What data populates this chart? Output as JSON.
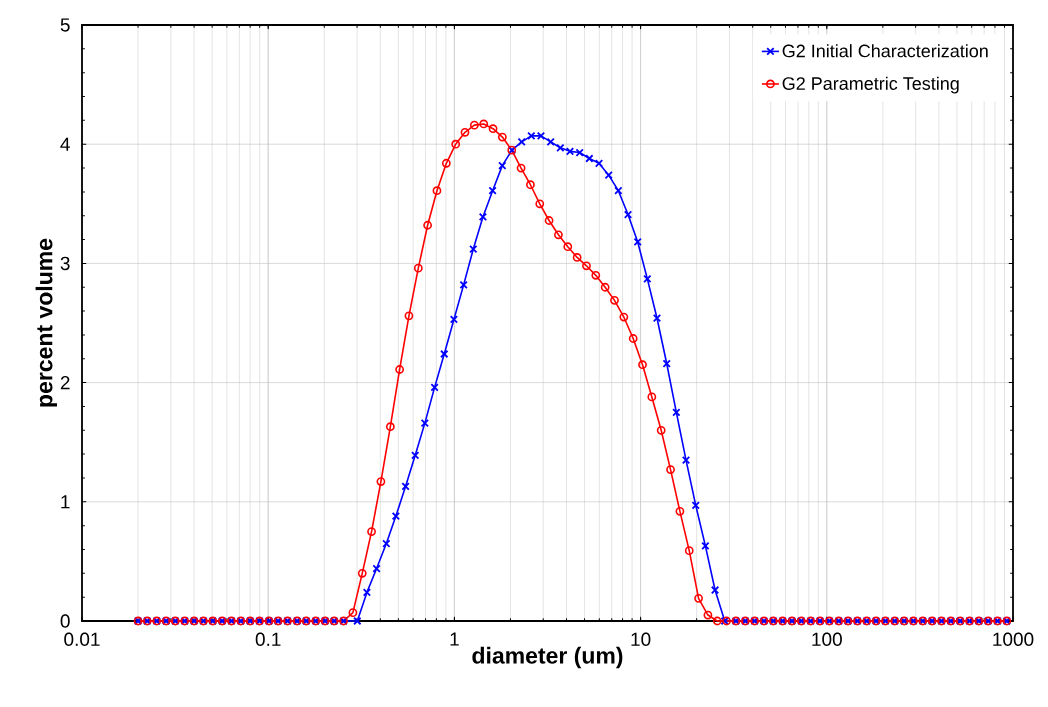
{
  "chart_data": {
    "type": "line",
    "xlabel": "diameter (um)",
    "ylabel": "percent volume",
    "log": "x",
    "xlim": [
      0.01,
      1000
    ],
    "xticks": [
      0.01,
      0.1,
      1,
      10,
      100,
      1000
    ],
    "ylim": [
      0,
      5
    ],
    "yticks": [
      0,
      1,
      2,
      3,
      4,
      5
    ],
    "grid": true,
    "legend": "top right",
    "line_style": "solid",
    "series": [
      {
        "name": "G2 Initial Characterization",
        "color": "#0000ff",
        "marker": "cross",
        "x": [
          0.02,
          0.0224,
          0.0252,
          0.0283,
          0.0317,
          0.0356,
          0.04,
          0.0449,
          0.0504,
          0.0566,
          0.0635,
          0.0713,
          0.08,
          0.0898,
          0.101,
          0.113,
          0.127,
          0.143,
          0.16,
          0.18,
          0.202,
          0.226,
          0.254,
          0.301,
          0.339,
          0.382,
          0.431,
          0.485,
          0.547,
          0.616,
          0.694,
          0.783,
          0.882,
          0.994,
          1.121,
          1.263,
          1.423,
          1.604,
          1.808,
          2.038,
          2.297,
          2.589,
          2.917,
          3.289,
          3.707,
          4.177,
          4.707,
          5.305,
          5.98,
          6.74,
          7.595,
          8.56,
          9.647,
          10.87,
          12.25,
          13.81,
          15.56,
          17.54,
          19.78,
          22.28,
          25.11,
          28.3,
          32.51,
          36.49,
          40.96,
          45.98,
          51.61,
          57.93,
          65.02,
          72.98,
          81.92,
          91.95,
          103.2,
          115.9,
          130.0,
          146.0,
          163.8,
          183.9,
          206.4,
          231.7,
          260.1,
          291.9,
          327.7,
          367.8,
          412.9,
          463.4,
          520.2,
          583.9,
          655.4,
          735.6,
          825.8,
          926.9
        ],
        "values": [
          0,
          0,
          0,
          0,
          0,
          0,
          0,
          0,
          0,
          0,
          0,
          0,
          0,
          0,
          0,
          0,
          0,
          0,
          0,
          0,
          0,
          0,
          0,
          0,
          0.24,
          0.44,
          0.65,
          0.88,
          1.13,
          1.39,
          1.66,
          1.96,
          2.24,
          2.53,
          2.82,
          3.12,
          3.39,
          3.61,
          3.82,
          3.95,
          4.02,
          4.07,
          4.07,
          4.02,
          3.97,
          3.94,
          3.93,
          3.88,
          3.84,
          3.74,
          3.61,
          3.41,
          3.18,
          2.87,
          2.54,
          2.16,
          1.75,
          1.35,
          0.97,
          0.63,
          0.26,
          0,
          0,
          0,
          0,
          0,
          0,
          0,
          0,
          0,
          0,
          0,
          0,
          0,
          0,
          0,
          0,
          0,
          0,
          0,
          0,
          0,
          0,
          0,
          0,
          0,
          0,
          0,
          0,
          0,
          0,
          0
        ]
      },
      {
        "name": "G2 Parametric Testing",
        "color": "#ff0000",
        "marker": "circle",
        "x": [
          0.02,
          0.0224,
          0.0252,
          0.0283,
          0.0317,
          0.0356,
          0.04,
          0.0449,
          0.0504,
          0.0566,
          0.0635,
          0.0713,
          0.08,
          0.0898,
          0.101,
          0.113,
          0.127,
          0.143,
          0.16,
          0.18,
          0.202,
          0.226,
          0.254,
          0.285,
          0.32,
          0.359,
          0.403,
          0.453,
          0.508,
          0.57,
          0.64,
          0.718,
          0.806,
          0.905,
          1.016,
          1.14,
          1.28,
          1.437,
          1.613,
          1.81,
          2.032,
          2.281,
          2.56,
          2.874,
          3.225,
          3.62,
          4.064,
          4.561,
          5.12,
          5.747,
          6.451,
          7.241,
          8.128,
          9.123,
          10.24,
          11.49,
          12.9,
          14.48,
          16.26,
          18.25,
          20.48,
          22.99,
          25.8,
          28.96,
          32.51,
          36.49,
          40.96,
          45.98,
          51.61,
          57.93,
          65.02,
          72.98,
          81.92,
          91.95,
          103.2,
          115.9,
          130.0,
          146.0,
          163.8,
          183.9,
          206.4,
          231.7,
          260.1,
          291.9,
          327.7,
          367.8,
          412.9,
          463.4,
          520.2,
          583.9,
          655.4,
          735.6,
          825.8,
          926.9
        ],
        "values": [
          0,
          0,
          0,
          0,
          0,
          0,
          0,
          0,
          0,
          0,
          0,
          0,
          0,
          0,
          0,
          0,
          0,
          0,
          0,
          0,
          0,
          0,
          0,
          0.07,
          0.4,
          0.75,
          1.17,
          1.63,
          2.11,
          2.56,
          2.96,
          3.32,
          3.61,
          3.84,
          4.0,
          4.1,
          4.16,
          4.17,
          4.13,
          4.06,
          3.95,
          3.8,
          3.66,
          3.5,
          3.36,
          3.24,
          3.14,
          3.05,
          2.98,
          2.9,
          2.8,
          2.69,
          2.55,
          2.37,
          2.15,
          1.88,
          1.6,
          1.27,
          0.92,
          0.59,
          0.19,
          0.05,
          0,
          0,
          0,
          0,
          0,
          0,
          0,
          0,
          0,
          0,
          0,
          0,
          0,
          0,
          0,
          0,
          0,
          0,
          0,
          0,
          0,
          0,
          0,
          0,
          0,
          0,
          0,
          0,
          0,
          0,
          0,
          0
        ]
      }
    ]
  }
}
